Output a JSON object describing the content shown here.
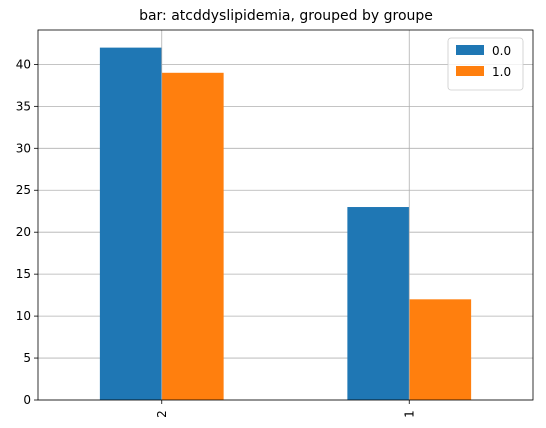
{
  "chart_data": {
    "type": "bar",
    "title": "bar: atcddyslipidemia, grouped by groupe",
    "xlabel": "",
    "ylabel": "",
    "categories": [
      "2",
      "1"
    ],
    "series": [
      {
        "name": "0.0",
        "color": "#1f77b4",
        "values": [
          42,
          23
        ]
      },
      {
        "name": "1.0",
        "color": "#ff7f0e",
        "values": [
          39,
          12
        ]
      }
    ],
    "ylim": [
      0,
      44.1
    ],
    "yticks": [
      0,
      5,
      10,
      15,
      20,
      25,
      30,
      35,
      40
    ],
    "grid": true,
    "legend_position": "top-right",
    "xtick_rotation": "vertical"
  }
}
